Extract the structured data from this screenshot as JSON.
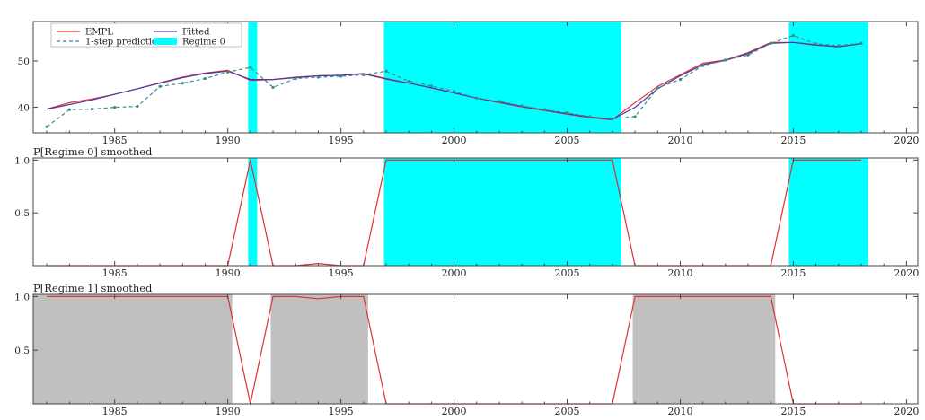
{
  "colors": {
    "regime0": "#00ffff",
    "regime1": "#c0c0c0",
    "actual": "#e03030",
    "fitted": "#4a3aa8",
    "prediction": "#3a8a8a",
    "axis": "#444444"
  },
  "chart_data": [
    {
      "type": "line",
      "id": "panel-1",
      "xlim": [
        1981.4,
        2020.5
      ],
      "ylim": [
        34.5,
        58.5
      ],
      "xticks": [
        1985,
        1990,
        1995,
        2000,
        2005,
        2010,
        2015,
        2020
      ],
      "yticks": [
        40,
        50
      ],
      "legend_placement": "top-left",
      "legend": [
        {
          "label": "EMPL",
          "style": "actual"
        },
        {
          "label": "Fitted",
          "style": "fitted"
        },
        {
          "label": "1-step prediction",
          "style": "prediction"
        },
        {
          "label": "Regime 0",
          "style": "regime0"
        }
      ],
      "regime_bands": [
        [
          1990.9,
          1991.3
        ],
        [
          1996.9,
          2007.4
        ],
        [
          2014.8,
          2018.3
        ]
      ],
      "series": [
        {
          "name": "EMPL",
          "style": "actual",
          "x": [
            1982,
            1983,
            1984,
            1985,
            1986,
            1987,
            1988,
            1989,
            1990,
            1991,
            1992,
            1993,
            1994,
            1995,
            1996,
            1997,
            1998,
            1999,
            2000,
            2001,
            2002,
            2003,
            2004,
            2005,
            2006,
            2007,
            2008,
            2009,
            2010,
            2011,
            2012,
            2013,
            2014,
            2015,
            2016,
            2017,
            2018
          ],
          "y": [
            39.6,
            41.0,
            41.8,
            42.8,
            44.0,
            45.3,
            46.5,
            47.4,
            48.0,
            45.8,
            46.0,
            46.5,
            46.8,
            46.9,
            47.3,
            46.2,
            45.2,
            44.2,
            43.1,
            42.0,
            41.0,
            40.1,
            39.3,
            38.5,
            37.8,
            37.3,
            41.0,
            44.5,
            47.0,
            49.5,
            50.2,
            51.8,
            54.0,
            54.0,
            53.5,
            53.0,
            53.8
          ]
        },
        {
          "name": "Fitted",
          "style": "fitted",
          "x": [
            1982,
            1983,
            1984,
            1985,
            1986,
            1987,
            1988,
            1989,
            1990,
            1991,
            1992,
            1993,
            1994,
            1995,
            1996,
            1997,
            1998,
            1999,
            2000,
            2001,
            2002,
            2003,
            2004,
            2005,
            2006,
            2007,
            2008,
            2009,
            2010,
            2011,
            2012,
            2013,
            2014,
            2015,
            2016,
            2017,
            2018
          ],
          "y": [
            39.6,
            40.6,
            41.6,
            42.8,
            44.0,
            45.2,
            46.4,
            47.3,
            47.8,
            46.0,
            46.0,
            46.4,
            46.8,
            46.9,
            47.2,
            46.1,
            45.2,
            44.2,
            43.1,
            42.0,
            41.1,
            40.2,
            39.4,
            38.6,
            37.9,
            37.4,
            40.0,
            44.0,
            46.8,
            49.2,
            50.1,
            51.6,
            53.8,
            54.0,
            53.4,
            53.1,
            53.7
          ]
        },
        {
          "name": "1-step prediction",
          "style": "prediction",
          "x": [
            1982,
            1983,
            1984,
            1985,
            1986,
            1987,
            1988,
            1989,
            1990,
            1991,
            1992,
            1993,
            1994,
            1995,
            1996,
            1997,
            1998,
            1999,
            2000,
            2001,
            2002,
            2003,
            2004,
            2005,
            2006,
            2007,
            2008,
            2009,
            2010,
            2011,
            2012,
            2013,
            2014,
            2015,
            2016,
            2017,
            2018
          ],
          "y": [
            35.8,
            39.5,
            39.6,
            40.0,
            40.2,
            44.5,
            45.2,
            46.2,
            47.6,
            48.6,
            44.3,
            46.2,
            46.5,
            46.7,
            47.0,
            47.8,
            45.6,
            44.6,
            43.4,
            42.0,
            41.3,
            40.3,
            39.5,
            38.8,
            38.0,
            37.5,
            38.0,
            44.2,
            46.0,
            49.0,
            50.2,
            51.3,
            53.8,
            55.5,
            53.7,
            53.3,
            53.8
          ]
        }
      ]
    },
    {
      "type": "area",
      "id": "panel-2",
      "title": "P[Regime 0] smoothed",
      "xlim": [
        1981.4,
        2020.5
      ],
      "ylim": [
        0,
        1.02
      ],
      "xticks": [
        1985,
        1990,
        1995,
        2000,
        2005,
        2010,
        2015,
        2020
      ],
      "yticks": [
        0.5,
        1.0
      ],
      "ytick_labels": [
        "0.5",
        "1.0"
      ],
      "regime_bands": [
        [
          1990.9,
          1991.3
        ],
        [
          1996.9,
          2007.4
        ],
        [
          2014.8,
          2018.3
        ]
      ],
      "series": [
        {
          "style": "actual",
          "x": [
            1982,
            1983,
            1984,
            1985,
            1986,
            1987,
            1988,
            1989,
            1990,
            1991,
            1992,
            1993,
            1994,
            1995,
            1996,
            1997,
            1998,
            1999,
            2000,
            2001,
            2002,
            2003,
            2004,
            2005,
            2006,
            2007,
            2008,
            2009,
            2010,
            2011,
            2012,
            2013,
            2014,
            2015,
            2016,
            2017,
            2018
          ],
          "y": [
            0,
            0,
            0,
            0,
            0,
            0,
            0,
            0,
            0,
            1.0,
            0,
            0,
            0.02,
            0,
            0,
            1.0,
            1.0,
            1.0,
            1.0,
            1.0,
            1.0,
            1.0,
            1.0,
            1.0,
            1.0,
            1.0,
            0,
            0,
            0,
            0,
            0,
            0,
            0,
            1.0,
            1.0,
            1.0,
            1.0
          ]
        }
      ]
    },
    {
      "type": "area",
      "id": "panel-3",
      "title": "P[Regime 1] smoothed",
      "xlim": [
        1981.4,
        2020.5
      ],
      "ylim": [
        0,
        1.02
      ],
      "xticks": [
        1985,
        1990,
        1995,
        2000,
        2005,
        2010,
        2015,
        2020
      ],
      "yticks": [
        0.5,
        1.0
      ],
      "ytick_labels": [
        "0.5",
        "1.0"
      ],
      "regime_bands": [
        [
          1981.4,
          1990.2
        ],
        [
          1991.9,
          1996.2
        ],
        [
          2007.9,
          2014.2
        ]
      ],
      "series": [
        {
          "style": "actual",
          "x": [
            1982,
            1983,
            1984,
            1985,
            1986,
            1987,
            1988,
            1989,
            1990,
            1991,
            1992,
            1993,
            1994,
            1995,
            1996,
            1997,
            1998,
            1999,
            2000,
            2001,
            2002,
            2003,
            2004,
            2005,
            2006,
            2007,
            2008,
            2009,
            2010,
            2011,
            2012,
            2013,
            2014,
            2015,
            2016,
            2017,
            2018
          ],
          "y": [
            1.0,
            1.0,
            1.0,
            1.0,
            1.0,
            1.0,
            1.0,
            1.0,
            1.0,
            0,
            1.0,
            1.0,
            0.98,
            1.0,
            1.0,
            0,
            0,
            0,
            0,
            0,
            0,
            0,
            0,
            0,
            0,
            0,
            1.0,
            1.0,
            1.0,
            1.0,
            1.0,
            1.0,
            1.0,
            0,
            0,
            0,
            0
          ]
        }
      ]
    }
  ]
}
